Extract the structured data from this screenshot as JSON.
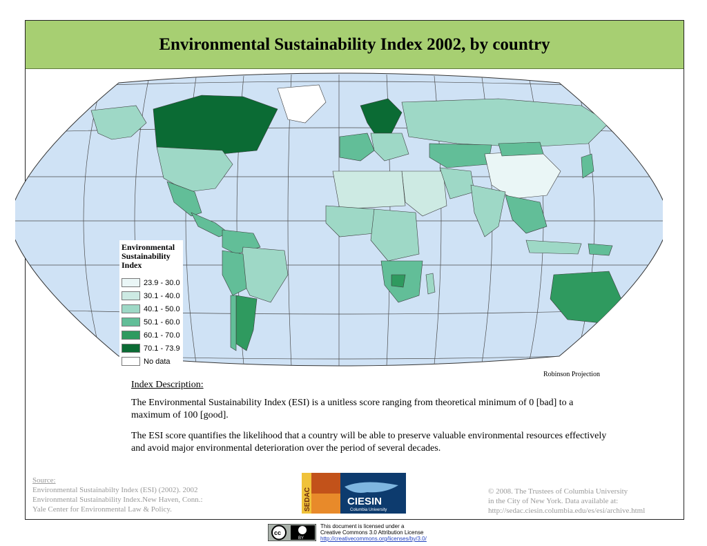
{
  "title": "Environmental Sustainability Index 2002, by country",
  "projection": "Robinson Projection",
  "legend": {
    "title_lines": [
      "Environmental",
      "Sustainability",
      "Index"
    ],
    "classes": [
      {
        "label": "23.9 - 30.0",
        "color": "#eaf6f6"
      },
      {
        "label": "30.1 - 40.0",
        "color": "#cdeae3"
      },
      {
        "label": "40.1 - 50.0",
        "color": "#9ed8c6"
      },
      {
        "label": "50.1 - 60.0",
        "color": "#62be98"
      },
      {
        "label": "60.1 - 70.0",
        "color": "#2f9a5f"
      },
      {
        "label": "70.1 - 73.9",
        "color": "#0b6b34"
      },
      {
        "label": "No data",
        "color": "#ffffff"
      }
    ]
  },
  "description": {
    "heading": "Index Description:",
    "paragraph1": "The Environmental Sustainability Index (ESI) is a unitless score ranging from theoretical minimum of 0 [bad] to a maximum of 100 [good].",
    "paragraph2": "The ESI score quantifies the likelihood that a country will be able to preserve valuable environmental resources effectively and avoid major environmental deterioration over the period of several decades."
  },
  "source": {
    "heading": "Source:",
    "lines": [
      "Environmental Sustainabilty Index (ESI) (2002). 2002",
      "Environmental Sustainability Index.New Haven, Conn.:",
      "Yale Center for Environmental Law & Policy."
    ]
  },
  "copyright": {
    "lines": [
      "© 2008. The Trustees of Columbia University",
      "in the City of New York. Data available at:",
      "http://sedac.ciesin.columbia.edu/es/esi/archive.html"
    ]
  },
  "logos": {
    "sedac": "SEDAC",
    "ciesin": "CIESIN",
    "ciesin_sub": "Columbia University"
  },
  "license": {
    "badge_left": "cc",
    "badge_right": "BY",
    "lines": [
      "This document is licensed under a",
      "Creative Commons 3.0 Attribution License"
    ],
    "url": "http://creativecommons.org/licenses/by/3.0/"
  },
  "map_colors": {
    "ocean": "#cfe2f5",
    "graticule": "#4a4a4a",
    "border": "#3a3a3a"
  }
}
